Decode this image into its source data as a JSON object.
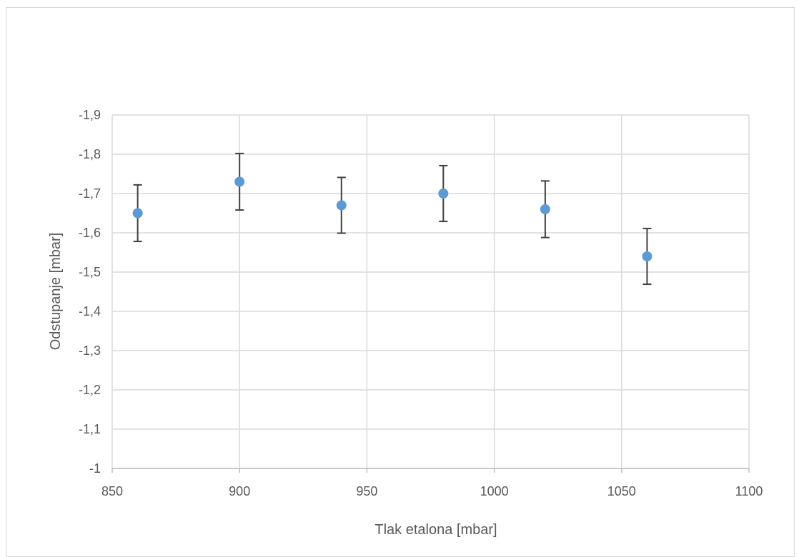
{
  "chart_data": {
    "type": "scatter",
    "title": "",
    "xlabel": "Tlak etalona [mbar]",
    "ylabel": "Odstupanje [mbar]",
    "xlim": [
      850,
      1100
    ],
    "ylim": [
      -1,
      -1.9
    ],
    "y_axis_reversed": true,
    "grid": true,
    "legend": "none",
    "x_ticks": [
      850,
      900,
      950,
      1000,
      1050,
      1100
    ],
    "x_tick_labels": [
      "850",
      "900",
      "950",
      "1000",
      "1050",
      "1100"
    ],
    "y_ticks": [
      -1,
      -1.1,
      -1.2,
      -1.3,
      -1.4,
      -1.5,
      -1.6,
      -1.7,
      -1.8,
      -1.9
    ],
    "y_tick_labels": [
      "-1",
      "-1,1",
      "-1,2",
      "-1,3",
      "-1,4",
      "-1,5",
      "-1,6",
      "-1,7",
      "-1,8",
      "-1,9"
    ],
    "series": [
      {
        "x": [
          860,
          900,
          940,
          980,
          1020,
          1060
        ],
        "y": [
          -1.65,
          -1.73,
          -1.67,
          -1.7,
          -1.66,
          -1.54
        ],
        "error": [
          0.072,
          0.072,
          0.071,
          0.071,
          0.072,
          0.071
        ],
        "color": "#5b9bd5"
      }
    ],
    "error_bar_color": "#404040",
    "grid_color": "#d9d9d9"
  }
}
